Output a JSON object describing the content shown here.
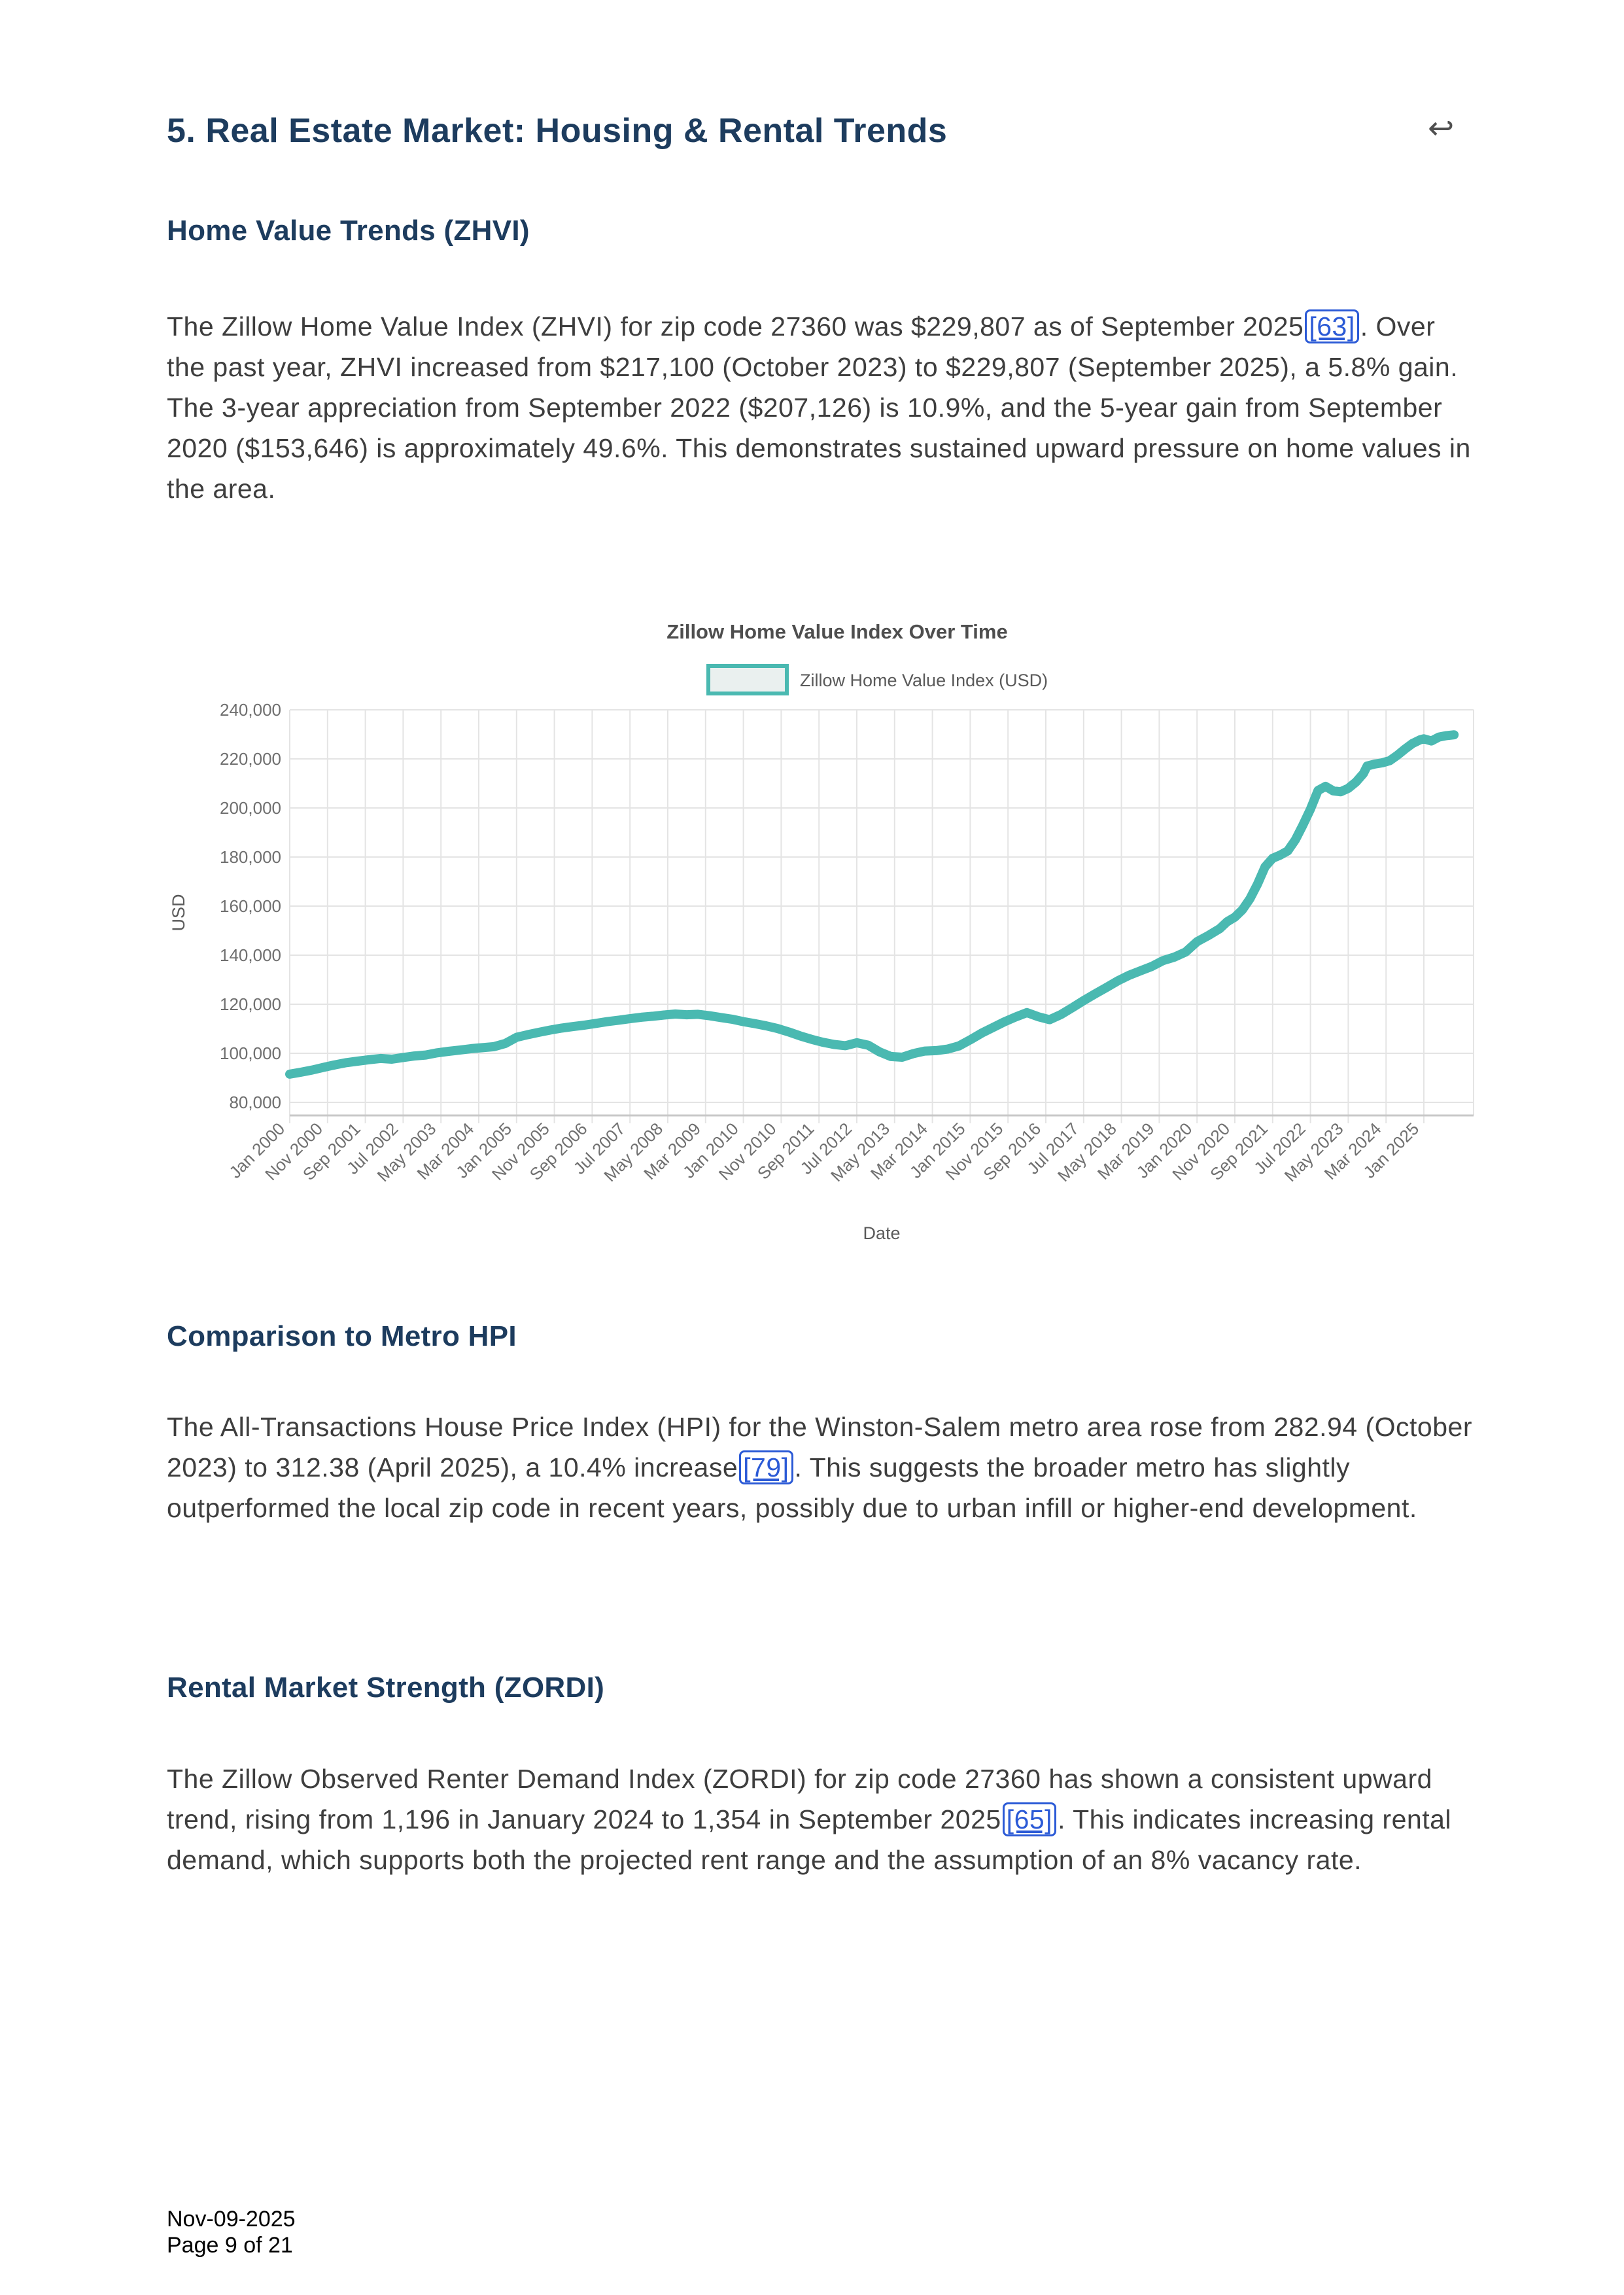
{
  "document": {
    "heading": "5. Real Estate Market: Housing & Rental Trends",
    "return_icon": "↩",
    "footer_date": "Nov-09-2025",
    "footer_page": "Page 9 of 21"
  },
  "sections": {
    "zhvi": {
      "heading": "Home Value Trends (ZHVI)",
      "paragraph": [
        {
          "t": "The Zillow Home Value Index (ZHVI) for zip code 27360 was $229,807 as of September 2025"
        },
        {
          "link": "[63]"
        },
        {
          "t": ". Over the past year, ZHVI increased from $217,100 (October 2023) to $229,807 (September 2025), a 5.8% gain. The 3-year appreciation from September 2022 ($207,126) is 10.9%, and the 5-year gain from September 2020 ($153,646) is approximately 49.6%. This demonstrates sustained upward pressure on home values in the area."
        }
      ]
    },
    "hpi": {
      "heading": "Comparison to Metro HPI",
      "paragraph": [
        {
          "t": "The All-Transactions House Price Index (HPI) for the Winston-Salem metro area rose from 282.94 (October 2023) to 312.38 (April 2025), a 10.4% increase"
        },
        {
          "link": "[79]"
        },
        {
          "t": ". This suggests the broader metro has slightly outperformed the local zip code in recent years, possibly due to urban infill or higher-end development."
        }
      ]
    },
    "zordi": {
      "heading": "Rental Market Strength (ZORDI)",
      "paragraph": [
        {
          "t": "The Zillow Observed Renter Demand Index (ZORDI) for zip code 27360 has shown a consistent upward trend, rising from 1,196 in January 2024 to 1,354 in September 2025"
        },
        {
          "link": "[65]"
        },
        {
          "t": ". This indicates increasing rental demand, which supports both the projected rent range and the assumption of an 8% vacancy rate."
        }
      ]
    }
  },
  "chart_data": {
    "type": "line",
    "title": "Zillow Home Value Index Over Time",
    "xlabel": "Date",
    "ylabel": "USD",
    "legend": [
      "Zillow Home Value Index (USD)"
    ],
    "legend_position": "top-center",
    "grid": true,
    "line_color": "#4ab9b1",
    "ylim": [
      80000,
      240000
    ],
    "ytick_step": 20000,
    "x_tick_interval_months": 10,
    "x_tick_labels": [
      "Jan 2000",
      "Nov 2000",
      "Sep 2001",
      "Jul 2002",
      "May 2003",
      "Mar 2004",
      "Jan 2005",
      "Nov 2005",
      "Sep 2006",
      "Jul 2007",
      "May 2008",
      "Mar 2009",
      "Jan 2010",
      "Nov 2010",
      "Sep 2011",
      "Jul 2012",
      "May 2013",
      "Mar 2014",
      "Jan 2015",
      "Nov 2015",
      "Sep 2016",
      "Jul 2017",
      "May 2018",
      "Mar 2019",
      "Jan 2020",
      "Nov 2020",
      "Sep 2021",
      "Jul 2022",
      "May 2023",
      "Mar 2024",
      "Jan 2025"
    ],
    "series": [
      {
        "name": "Zillow Home Value Index (USD)",
        "x_unit": "months_since_Jan_2000",
        "points_month_value": [
          [
            0,
            91500
          ],
          [
            3,
            92300
          ],
          [
            6,
            93200
          ],
          [
            9,
            94300
          ],
          [
            12,
            95300
          ],
          [
            15,
            96200
          ],
          [
            18,
            96800
          ],
          [
            21,
            97400
          ],
          [
            24,
            97900
          ],
          [
            27,
            97600
          ],
          [
            30,
            98300
          ],
          [
            33,
            98900
          ],
          [
            36,
            99300
          ],
          [
            39,
            100200
          ],
          [
            42,
            100800
          ],
          [
            45,
            101300
          ],
          [
            48,
            101900
          ],
          [
            51,
            102300
          ],
          [
            54,
            102700
          ],
          [
            57,
            104000
          ],
          [
            60,
            106500
          ],
          [
            63,
            107600
          ],
          [
            66,
            108600
          ],
          [
            69,
            109500
          ],
          [
            72,
            110300
          ],
          [
            75,
            110900
          ],
          [
            78,
            111500
          ],
          [
            81,
            112200
          ],
          [
            84,
            112900
          ],
          [
            87,
            113500
          ],
          [
            90,
            114100
          ],
          [
            93,
            114700
          ],
          [
            96,
            115100
          ],
          [
            99,
            115600
          ],
          [
            102,
            116000
          ],
          [
            105,
            115700
          ],
          [
            108,
            115900
          ],
          [
            111,
            115300
          ],
          [
            114,
            114600
          ],
          [
            117,
            113900
          ],
          [
            120,
            112900
          ],
          [
            123,
            112100
          ],
          [
            126,
            111200
          ],
          [
            129,
            110100
          ],
          [
            132,
            108700
          ],
          [
            135,
            107100
          ],
          [
            138,
            105700
          ],
          [
            141,
            104500
          ],
          [
            144,
            103600
          ],
          [
            147,
            103100
          ],
          [
            150,
            104300
          ],
          [
            153,
            103300
          ],
          [
            156,
            100600
          ],
          [
            159,
            98700
          ],
          [
            162,
            98400
          ],
          [
            165,
            99900
          ],
          [
            168,
            100900
          ],
          [
            171,
            101100
          ],
          [
            174,
            101700
          ],
          [
            177,
            103000
          ],
          [
            180,
            105500
          ],
          [
            183,
            108200
          ],
          [
            186,
            110500
          ],
          [
            189,
            112800
          ],
          [
            192,
            114800
          ],
          [
            195,
            116600
          ],
          [
            198,
            114900
          ],
          [
            201,
            113700
          ],
          [
            204,
            115800
          ],
          [
            207,
            118600
          ],
          [
            210,
            121500
          ],
          [
            213,
            124200
          ],
          [
            216,
            126800
          ],
          [
            219,
            129500
          ],
          [
            222,
            131800
          ],
          [
            225,
            133600
          ],
          [
            228,
            135400
          ],
          [
            231,
            137800
          ],
          [
            234,
            139200
          ],
          [
            237,
            141300
          ],
          [
            240,
            145500
          ],
          [
            243,
            148000
          ],
          [
            246,
            150800
          ],
          [
            248,
            153646
          ],
          [
            250,
            155500
          ],
          [
            252,
            158500
          ],
          [
            254,
            163000
          ],
          [
            256,
            169000
          ],
          [
            258,
            176000
          ],
          [
            260,
            179500
          ],
          [
            262,
            180800
          ],
          [
            264,
            182500
          ],
          [
            266,
            187000
          ],
          [
            268,
            193000
          ],
          [
            270,
            199500
          ],
          [
            272,
            207126
          ],
          [
            274,
            208800
          ],
          [
            276,
            207000
          ],
          [
            278,
            206600
          ],
          [
            280,
            208000
          ],
          [
            282,
            210500
          ],
          [
            284,
            214000
          ],
          [
            285,
            217100
          ],
          [
            287,
            217900
          ],
          [
            289,
            218400
          ],
          [
            291,
            219300
          ],
          [
            293,
            221500
          ],
          [
            295,
            224000
          ],
          [
            297,
            226300
          ],
          [
            299,
            227800
          ],
          [
            300,
            228200
          ],
          [
            302,
            227300
          ],
          [
            304,
            228900
          ],
          [
            306,
            229500
          ],
          [
            308,
            229807
          ]
        ]
      }
    ],
    "colors": {
      "title": "#4e4e4e",
      "tick_labels": "#6f6f6f",
      "axis_titles": "#5a5a5a",
      "gridlines": "#e4e4e4",
      "axis_line": "#c8c8c8",
      "legend_fill": "#eaf0ef"
    }
  }
}
